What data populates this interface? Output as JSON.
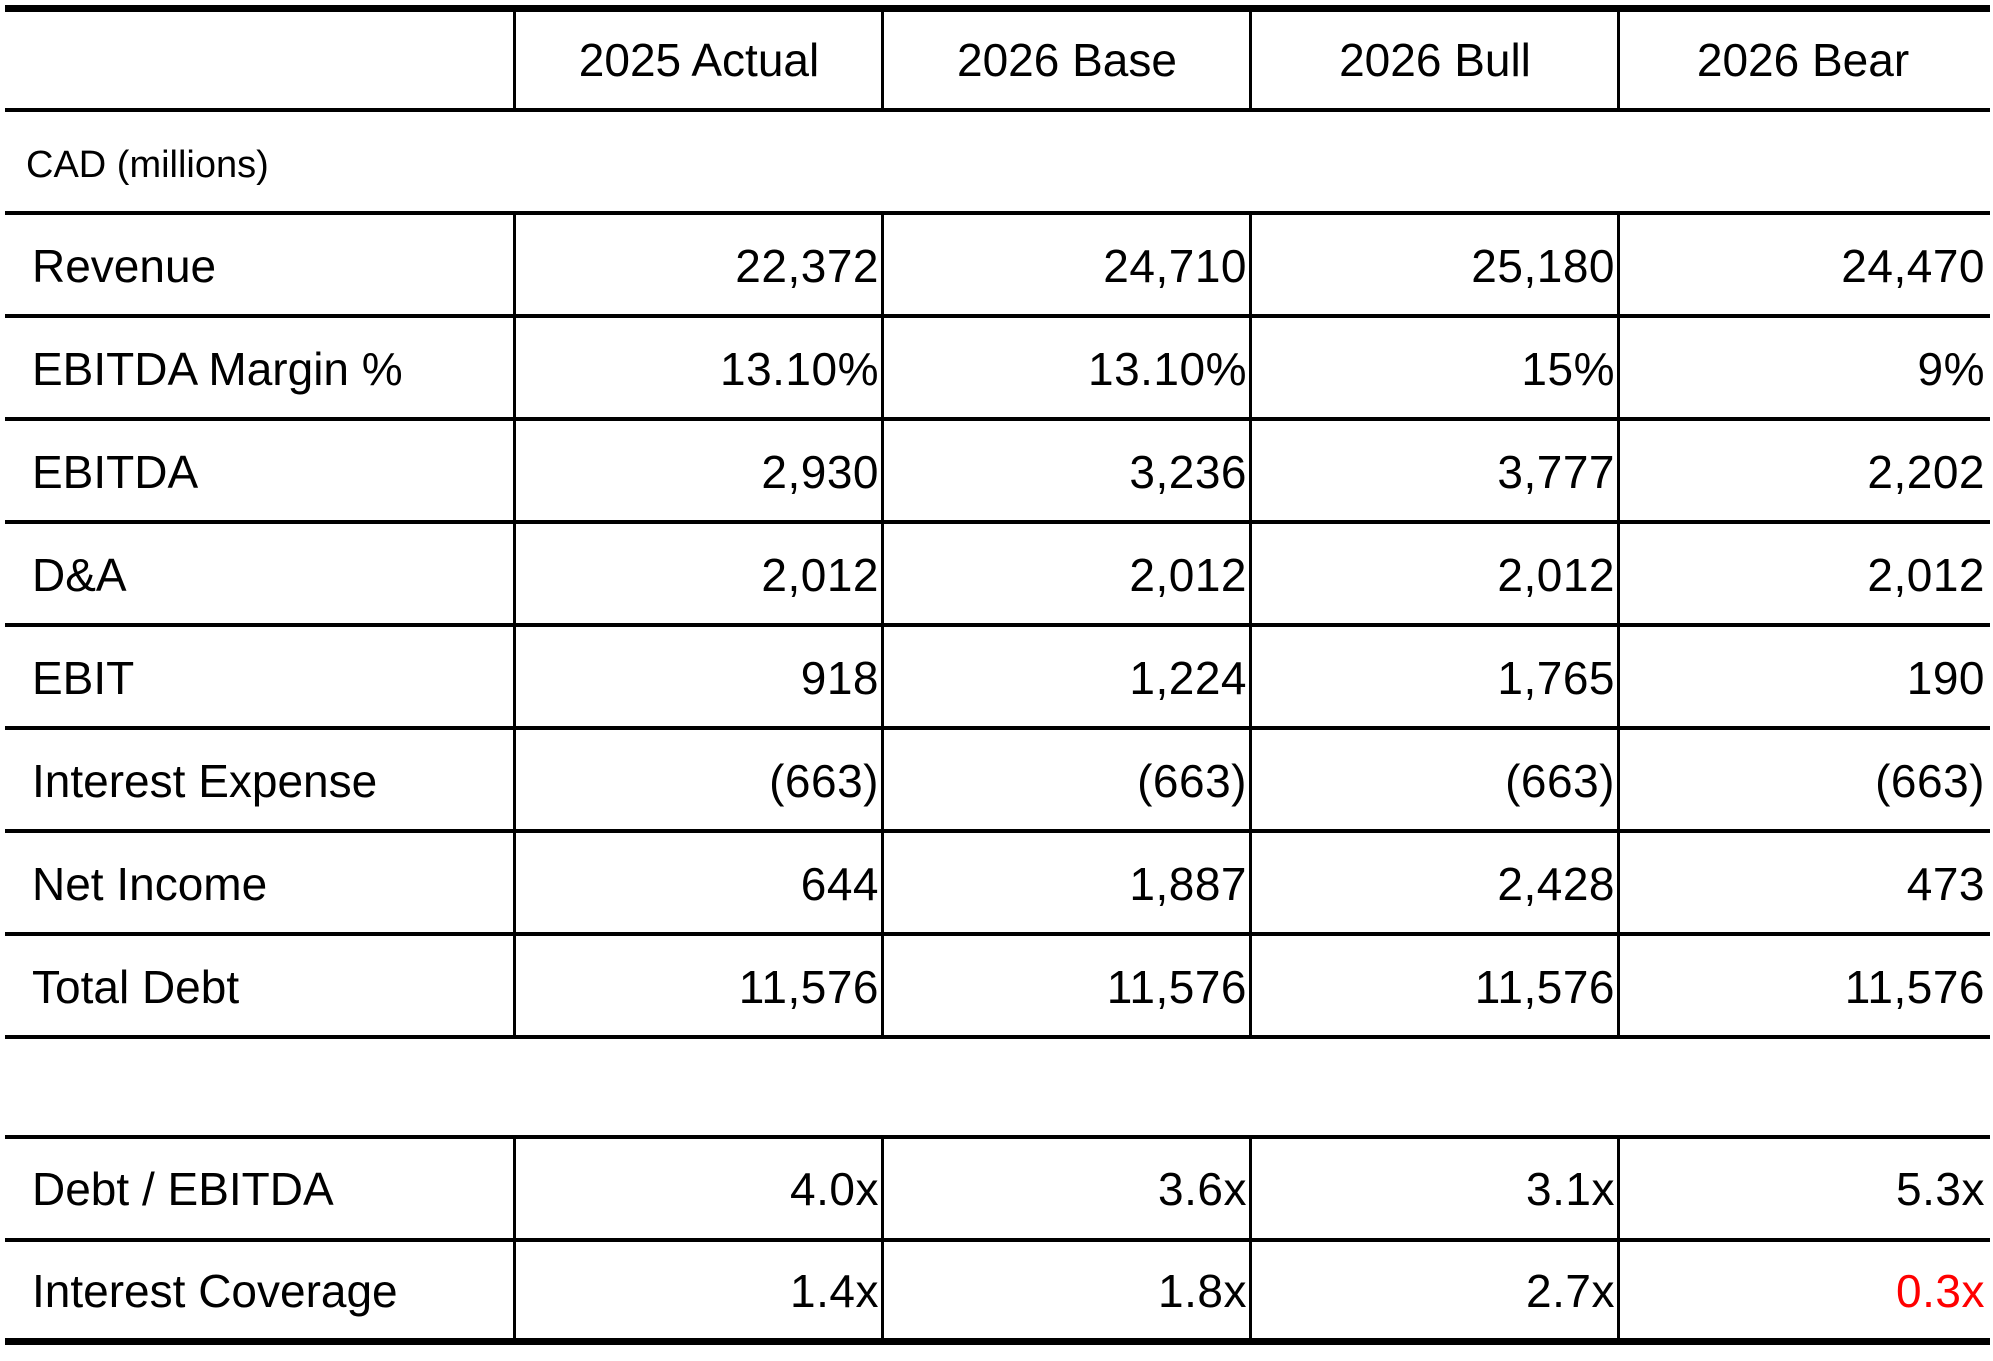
{
  "table": {
    "columns": [
      "2025 Actual",
      "2026 Base",
      "2026 Bull",
      "2026 Bear"
    ],
    "units": "CAD (millions)",
    "rows": [
      {
        "label": "Revenue",
        "values": [
          "22,372",
          "24,710",
          "25,180",
          "24,470"
        ]
      },
      {
        "label": "EBITDA Margin %",
        "values": [
          "13.10%",
          "13.10%",
          "15%",
          "9%"
        ]
      },
      {
        "label": "EBITDA",
        "values": [
          "2,930",
          "3,236",
          "3,777",
          "2,202"
        ]
      },
      {
        "label": "D&A",
        "values": [
          "2,012",
          "2,012",
          "2,012",
          "2,012"
        ]
      },
      {
        "label": "EBIT",
        "values": [
          "918",
          "1,224",
          "1,765",
          "190"
        ]
      },
      {
        "label": "Interest Expense",
        "values": [
          "(663)",
          "(663)",
          "(663)",
          "(663)"
        ]
      },
      {
        "label": "Net Income",
        "values": [
          "644",
          "1,887",
          "2,428",
          "473"
        ]
      },
      {
        "label": "Total Debt",
        "values": [
          "11,576",
          "11,576",
          "11,576",
          "11,576"
        ]
      }
    ],
    "ratios": [
      {
        "label": "Debt / EBITDA",
        "values": [
          "4.0x",
          "3.6x",
          "3.1x",
          "5.3x"
        ]
      },
      {
        "label": "Interest Coverage",
        "values": [
          "1.4x",
          "1.8x",
          "2.7x",
          "0.3x"
        ]
      }
    ],
    "highlight_color": "#ff0000"
  }
}
